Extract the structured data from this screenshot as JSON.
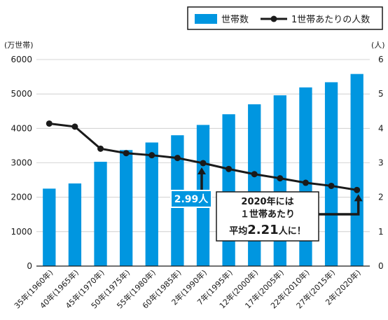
{
  "legend": {
    "bar_label": "世帯数",
    "line_label": "1世帯あたりの人数"
  },
  "axes": {
    "left_unit": "(万世帯)",
    "right_unit": "(人)"
  },
  "callouts": {
    "value_1990": "2.99人",
    "note_line1": "2020年には",
    "note_line2": "１世帯あたり",
    "note_prefix": "平均",
    "note_value": "2.21",
    "note_suffix": "人に！"
  },
  "colors": {
    "bar": "#0096e0",
    "line": "#1a1a1a",
    "callout_bg": "#0096e0"
  },
  "chart_data": {
    "type": "bar",
    "categories": [
      "35年(1960年)",
      "40年(1965年)",
      "45年(1970年)",
      "50年(1975年)",
      "55年(1980年)",
      "60年(1985年)",
      "2年(1990年)",
      "7年(1995年)",
      "12年(2000年)",
      "17年(2005年)",
      "22年(2010年)",
      "27年(2015年)",
      "2年(2020年)"
    ],
    "series": [
      {
        "name": "世帯数",
        "type": "bar",
        "axis": "left",
        "values": [
          2250,
          2400,
          3030,
          3370,
          3590,
          3800,
          4100,
          4410,
          4700,
          4960,
          5190,
          5340,
          5580
        ]
      },
      {
        "name": "1世帯あたりの人数",
        "type": "line",
        "axis": "right",
        "values": [
          4.14,
          4.05,
          3.41,
          3.28,
          3.22,
          3.14,
          2.99,
          2.82,
          2.67,
          2.55,
          2.42,
          2.33,
          2.21
        ]
      }
    ],
    "ylim_left": [
      0,
      6000
    ],
    "yticks_left": [
      0,
      1000,
      2000,
      3000,
      4000,
      5000,
      6000
    ],
    "ylim_right": [
      0,
      6
    ],
    "yticks_right": [
      0,
      1,
      2,
      3,
      4,
      5,
      6
    ],
    "grid": true,
    "legend_position": "top-right"
  }
}
